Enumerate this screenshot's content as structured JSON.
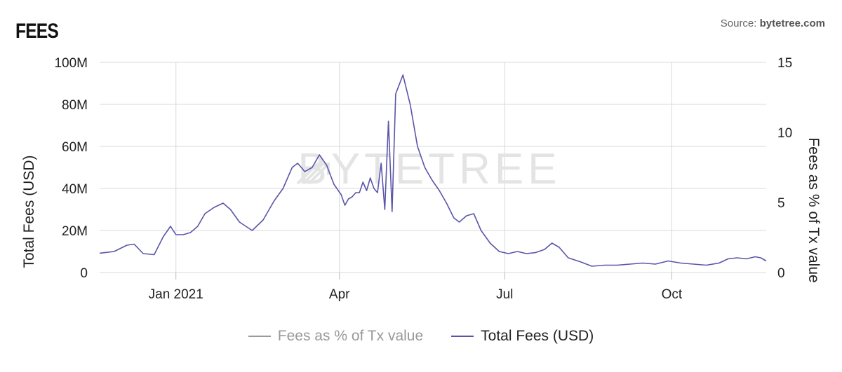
{
  "header": {
    "title": "FEES",
    "source_prefix": "Source: ",
    "source_name": "bytetree.com"
  },
  "watermark": "BYTETREE",
  "colors": {
    "total_fees": "#5a55a8",
    "fees_pct": "#9a9a9a",
    "grid": "#d9d9d9"
  },
  "chart_data": {
    "type": "line",
    "ylabel_left": "Total Fees (USD)",
    "ylabel_right": "Fees as % of Tx value",
    "ylim_left": [
      0,
      100000000
    ],
    "ylim_right": [
      0,
      15
    ],
    "y_ticks_left": [
      {
        "value": 0,
        "label": "0"
      },
      {
        "value": 20000000,
        "label": "20M"
      },
      {
        "value": 40000000,
        "label": "40M"
      },
      {
        "value": 60000000,
        "label": "60M"
      },
      {
        "value": 80000000,
        "label": "80M"
      },
      {
        "value": 100000000,
        "label": "100M"
      }
    ],
    "y_ticks_right": [
      {
        "value": 0,
        "label": "0"
      },
      {
        "value": 5,
        "label": "5"
      },
      {
        "value": 10,
        "label": "10"
      },
      {
        "value": 15,
        "label": "15"
      }
    ],
    "xlim": [
      "2020-11-20",
      "2021-11-22"
    ],
    "x_ticks": [
      {
        "date": "2021-01-01",
        "label": "Jan 2021"
      },
      {
        "date": "2021-04-01",
        "label": "Apr"
      },
      {
        "date": "2021-07-01",
        "label": "Jul"
      },
      {
        "date": "2021-10-01",
        "label": "Oct"
      }
    ],
    "grid": true,
    "legend_position": "bottom",
    "series": [
      {
        "name": "Fees as % of Tx value",
        "axis": "right",
        "visible": false,
        "points": []
      },
      {
        "name": "Total Fees (USD)",
        "axis": "left",
        "visible": true,
        "points": [
          [
            "2020-11-20",
            9200000
          ],
          [
            "2020-11-28",
            10000000
          ],
          [
            "2020-12-05",
            13000000
          ],
          [
            "2020-12-09",
            13500000
          ],
          [
            "2020-12-14",
            9000000
          ],
          [
            "2020-12-20",
            8500000
          ],
          [
            "2020-12-25",
            17000000
          ],
          [
            "2020-12-29",
            22000000
          ],
          [
            "2021-01-01",
            18000000
          ],
          [
            "2021-01-05",
            18000000
          ],
          [
            "2021-01-09",
            19000000
          ],
          [
            "2021-01-13",
            22000000
          ],
          [
            "2021-01-17",
            28000000
          ],
          [
            "2021-01-22",
            31000000
          ],
          [
            "2021-01-27",
            33000000
          ],
          [
            "2021-01-31",
            30000000
          ],
          [
            "2021-02-05",
            24000000
          ],
          [
            "2021-02-12",
            20000000
          ],
          [
            "2021-02-18",
            25000000
          ],
          [
            "2021-02-24",
            34000000
          ],
          [
            "2021-03-01",
            40000000
          ],
          [
            "2021-03-06",
            50000000
          ],
          [
            "2021-03-09",
            52000000
          ],
          [
            "2021-03-13",
            48000000
          ],
          [
            "2021-03-17",
            50000000
          ],
          [
            "2021-03-21",
            56000000
          ],
          [
            "2021-03-25",
            51000000
          ],
          [
            "2021-03-29",
            42000000
          ],
          [
            "2021-04-02",
            37000000
          ],
          [
            "2021-04-06",
            35000000
          ],
          [
            "2021-04-10",
            38000000
          ],
          [
            "2021-04-14",
            43000000
          ],
          [
            "2021-04-18",
            45000000
          ],
          [
            "2021-04-22",
            38000000
          ],
          [
            "2021-04-26",
            30000000
          ],
          [
            "2021-04-30",
            29000000
          ],
          [
            "2021-04-04",
            32000000
          ],
          [
            "2021-04-08",
            36000000
          ],
          [
            "2021-04-12",
            38000000
          ],
          [
            "2021-04-16",
            39000000
          ],
          [
            "2021-04-20",
            40000000
          ],
          [
            "2021-04-24",
            52000000
          ],
          [
            "2021-04-28",
            72000000
          ],
          [
            "2021-05-02",
            85000000
          ],
          [
            "2021-05-06",
            94000000
          ],
          [
            "2021-05-10",
            80000000
          ],
          [
            "2021-05-14",
            60000000
          ],
          [
            "2021-05-18",
            50000000
          ],
          [
            "2021-05-22",
            44000000
          ],
          [
            "2021-05-26",
            39000000
          ],
          [
            "2021-05-30",
            33000000
          ],
          [
            "2021-06-03",
            26000000
          ],
          [
            "2021-06-06",
            24000000
          ],
          [
            "2021-06-10",
            27000000
          ],
          [
            "2021-06-14",
            28000000
          ],
          [
            "2021-06-18",
            20000000
          ],
          [
            "2021-06-23",
            14000000
          ],
          [
            "2021-06-28",
            10000000
          ],
          [
            "2021-07-03",
            9000000
          ],
          [
            "2021-07-08",
            10000000
          ],
          [
            "2021-07-13",
            9000000
          ],
          [
            "2021-07-18",
            9500000
          ],
          [
            "2021-07-23",
            11000000
          ],
          [
            "2021-07-27",
            14000000
          ],
          [
            "2021-07-31",
            12000000
          ],
          [
            "2021-08-05",
            7000000
          ],
          [
            "2021-08-12",
            5000000
          ],
          [
            "2021-08-18",
            3000000
          ],
          [
            "2021-08-25",
            3500000
          ],
          [
            "2021-09-01",
            3500000
          ],
          [
            "2021-09-08",
            4000000
          ],
          [
            "2021-09-15",
            4500000
          ],
          [
            "2021-09-22",
            4000000
          ],
          [
            "2021-09-29",
            5500000
          ],
          [
            "2021-10-06",
            4500000
          ],
          [
            "2021-10-13",
            4000000
          ],
          [
            "2021-10-20",
            3500000
          ],
          [
            "2021-10-27",
            4500000
          ],
          [
            "2021-11-01",
            6500000
          ],
          [
            "2021-11-06",
            7000000
          ],
          [
            "2021-11-11",
            6500000
          ],
          [
            "2021-11-16",
            7500000
          ],
          [
            "2021-11-19",
            7000000
          ],
          [
            "2021-11-22",
            5500000
          ]
        ]
      }
    ]
  }
}
